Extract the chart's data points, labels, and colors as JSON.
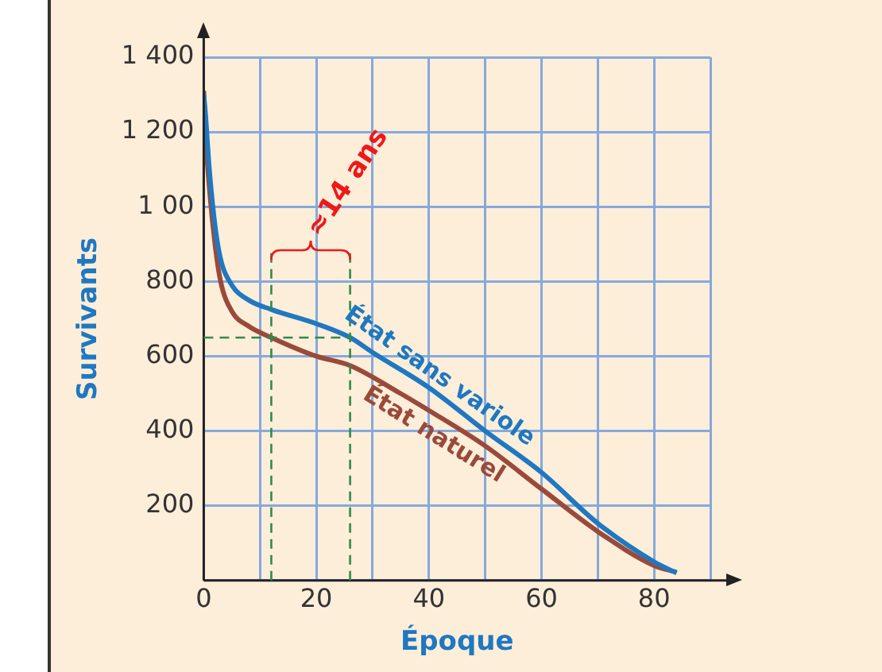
{
  "chart_data": {
    "type": "line",
    "xlabel": "Époque",
    "ylabel": "Survivants",
    "xlim": [
      0,
      90
    ],
    "xticks": [
      0,
      20,
      40,
      60,
      80
    ],
    "ylim": [
      0,
      1400
    ],
    "yticks": [
      {
        "value": 200,
        "label": "200"
      },
      {
        "value": 400,
        "label": "400"
      },
      {
        "value": 600,
        "label": "600"
      },
      {
        "value": 800,
        "label": "800"
      },
      {
        "value": 1000,
        "label": "1 00"
      },
      {
        "value": 1200,
        "label": "1 200"
      },
      {
        "value": 1400,
        "label": "1 400"
      }
    ],
    "grid": true,
    "legend": false,
    "marker": "none",
    "line_style": "solid",
    "series": [
      {
        "name": "État sans variole",
        "color": "#1f78c0",
        "x": [
          0,
          0.3,
          1,
          2,
          3,
          5,
          8,
          12,
          20,
          26,
          30,
          40,
          50,
          60,
          70,
          80,
          84
        ],
        "values": [
          1300,
          1250,
          1100,
          950,
          860,
          790,
          750,
          725,
          687,
          650,
          610,
          516,
          400,
          289,
          153,
          50,
          20
        ]
      },
      {
        "name": "État naturel",
        "color": "#9a4a3a",
        "x": [
          0,
          0.3,
          1,
          2,
          3,
          5,
          8,
          12,
          20,
          26,
          35,
          40,
          50,
          60,
          70,
          80,
          84
        ],
        "values": [
          1310,
          1200,
          1050,
          900,
          800,
          720,
          680,
          650,
          600,
          575,
          500,
          455,
          360,
          245,
          131,
          40,
          22
        ]
      }
    ],
    "ref_lines": [
      {
        "axis": "y",
        "value": 650,
        "color": "#2e8b4a",
        "line_style": "dashed"
      },
      {
        "axis": "x",
        "value": 12,
        "color": "#2e8b4a",
        "line_style": "dashed"
      },
      {
        "axis": "x",
        "value": 26,
        "color": "#2e8b4a",
        "line_style": "dashed"
      }
    ],
    "annotations": [
      "≈14 ans"
    ]
  }
}
